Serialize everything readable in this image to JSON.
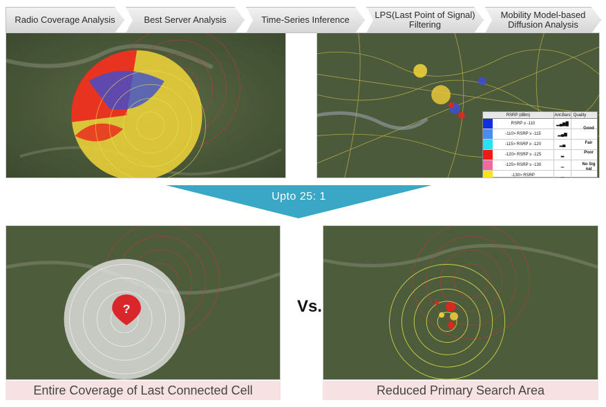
{
  "steps": [
    {
      "label": "Radio Coverage Analysis"
    },
    {
      "label": "Best Server Analysis"
    },
    {
      "label": "Time-Series Inference"
    },
    {
      "label": "LPS(Last Point of Signal) Filtering"
    },
    {
      "label": "Mobility Model-based Diffusion Analysis"
    }
  ],
  "banner": {
    "text": "Upto 25: 1",
    "color": "#3aa7c7"
  },
  "vs": "Vs.",
  "captions": {
    "left": "Entire Coverage of Last Connected Cell",
    "right": "Reduced Primary Search Area"
  },
  "legend": {
    "headers": [
      "RSRP (dBm)",
      "Ant.Bars",
      "Quality"
    ],
    "rows": [
      {
        "color": "#1030e0",
        "range": "RSRP ≥ -110"
      },
      {
        "color": "#4a8cf0",
        "range": "-110> RSRP ≥ -115"
      },
      {
        "color": "#29e0ee",
        "range": "-115> RSRP ≥ -120"
      },
      {
        "color": "#ee1a1a",
        "range": "-120> RSRP ≥ -125"
      },
      {
        "color": "#f06aa0",
        "range": "-125> RSRP ≥ -130"
      },
      {
        "color": "#f5e51a",
        "range": "-130> RSRP"
      }
    ],
    "quality": [
      "Good",
      "Fair",
      "Poor",
      "No Sig nal"
    ]
  },
  "colors": {
    "map_base": "#4a5a3a",
    "ring": "#e8e84a",
    "red_ring": "#d23a3a",
    "marker": "#d9262b"
  },
  "icons": [
    "question-marker-icon",
    "signal-bars-icon"
  ]
}
